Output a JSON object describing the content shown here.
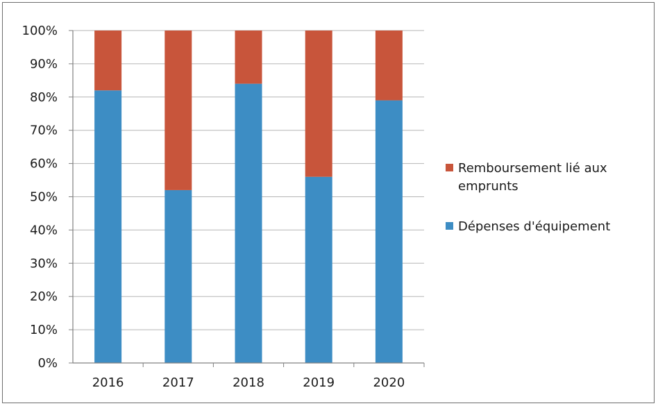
{
  "chart_data": {
    "type": "bar",
    "stacked": true,
    "categories": [
      "2016",
      "2017",
      "2018",
      "2019",
      "2020"
    ],
    "series": [
      {
        "name": "Dépenses d'équipement",
        "color": "#3d8dc4",
        "values": [
          82,
          52,
          84,
          56,
          79
        ]
      },
      {
        "name": "Remboursement lié aux emprunts",
        "color": "#c8553b",
        "values": [
          18,
          48,
          16,
          44,
          21
        ]
      }
    ],
    "ylim": [
      0,
      100
    ],
    "yticks": [
      "0%",
      "10%",
      "20%",
      "30%",
      "40%",
      "50%",
      "60%",
      "70%",
      "80%",
      "90%",
      "100%"
    ],
    "grid": true,
    "legend_position": "right",
    "legend": {
      "line1": "Remboursement lié aux",
      "line2": "emprunts",
      "entry2": "Dépenses d'équipement"
    },
    "title": "",
    "xlabel": "",
    "ylabel": ""
  }
}
